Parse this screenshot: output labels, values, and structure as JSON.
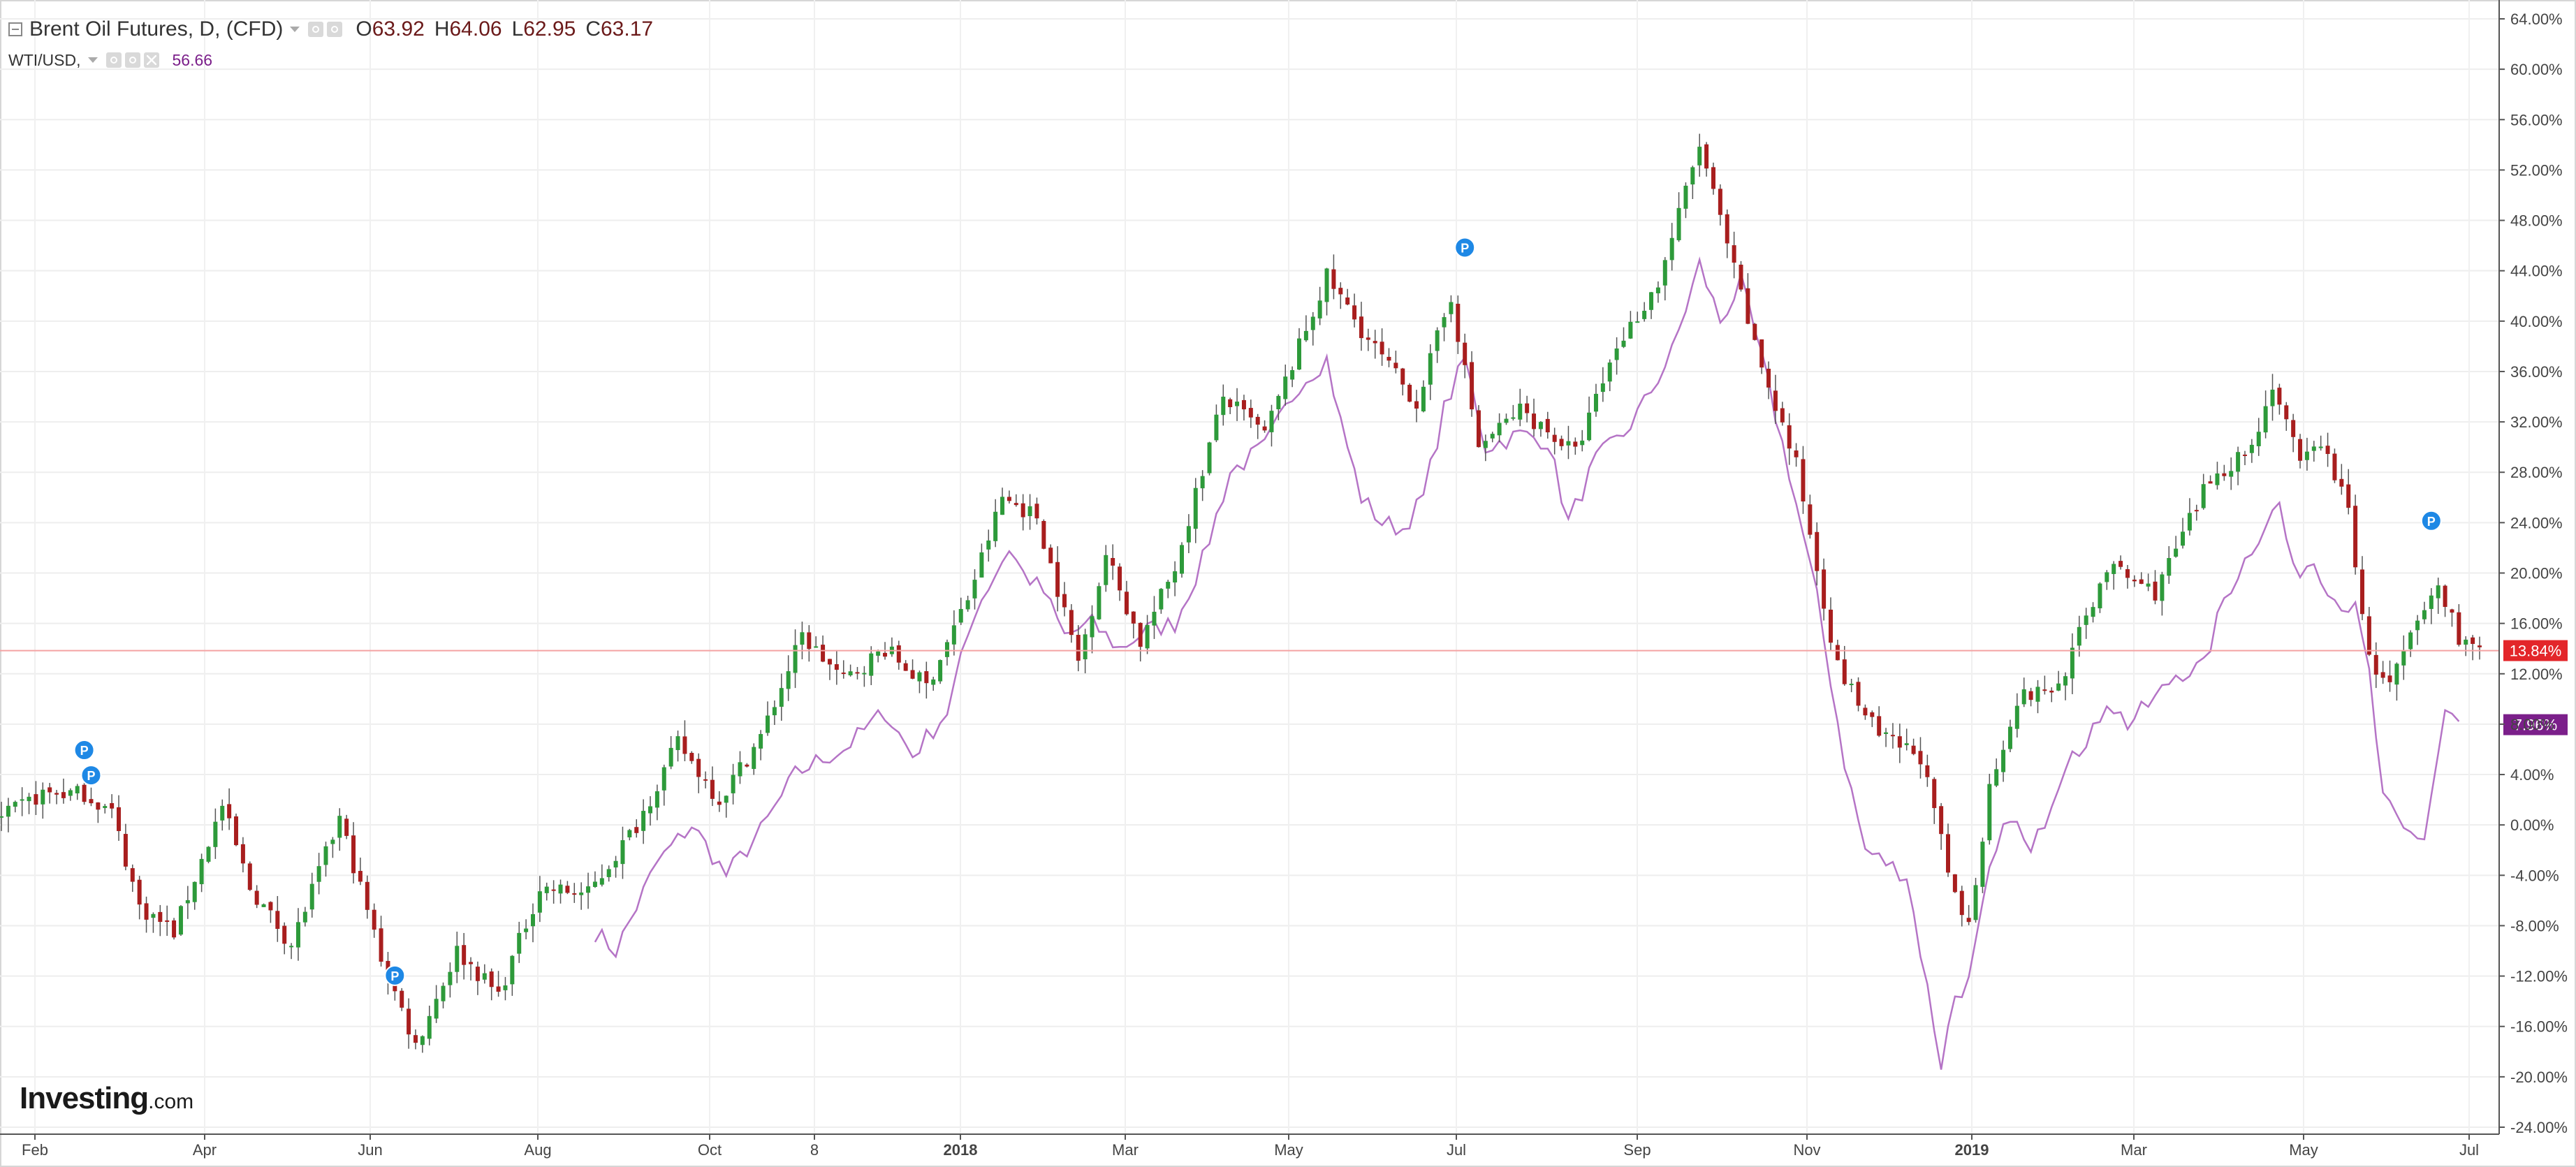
{
  "legend": {
    "symbol_title": "Brent Oil Futures, D, (CFD)",
    "ohlc": [
      {
        "key": "O",
        "value": "63.92"
      },
      {
        "key": "H",
        "value": "64.06"
      },
      {
        "key": "L",
        "value": "62.95"
      },
      {
        "key": "C",
        "value": "63.17"
      }
    ],
    "compare_symbol": "WTI/USD,",
    "compare_value": "56.66"
  },
  "watermark": {
    "brand": "Investing",
    "suffix": ".com"
  },
  "chart_data": {
    "type": "line",
    "chart_style": "candlestick with comparison line",
    "y_axis": {
      "position": "right",
      "scale": "percent",
      "range": [
        -24,
        64
      ],
      "ticks": [
        "64.00%",
        "60.00%",
        "56.00%",
        "52.00%",
        "48.00%",
        "44.00%",
        "40.00%",
        "36.00%",
        "32.00%",
        "28.00%",
        "24.00%",
        "20.00%",
        "16.00%",
        "12.00%",
        "8.00%",
        "4.00%",
        "0.00%",
        "-4.00%",
        "-8.00%",
        "-12.00%",
        "-16.00%",
        "-20.00%",
        "-24.00%"
      ]
    },
    "x_axis": {
      "ticks": [
        {
          "label": "Feb",
          "bold": false
        },
        {
          "label": "Apr",
          "bold": false
        },
        {
          "label": "Jun",
          "bold": false
        },
        {
          "label": "Aug",
          "bold": false
        },
        {
          "label": "Oct",
          "bold": false
        },
        {
          "label": "8",
          "bold": false
        },
        {
          "label": "2018",
          "bold": true
        },
        {
          "label": "Mar",
          "bold": false
        },
        {
          "label": "May",
          "bold": false
        },
        {
          "label": "Jul",
          "bold": false
        },
        {
          "label": "Sep",
          "bold": false
        },
        {
          "label": "Nov",
          "bold": false
        },
        {
          "label": "2019",
          "bold": true
        },
        {
          "label": "Mar",
          "bold": false
        },
        {
          "label": "May",
          "bold": false
        },
        {
          "label": "Jul",
          "bold": false
        }
      ]
    },
    "grid": true,
    "current_level_marker": {
      "label": "13.84%",
      "value": 13.84,
      "color": "#e3262a"
    },
    "compare_level_marker": {
      "label": "7.96%",
      "value": 7.96,
      "color": "#7b1f8a"
    },
    "colors": {
      "up": "#2d9a3a",
      "down": "#a81e1e",
      "wick": "#555555",
      "compare": "#b574c6",
      "marker_badge": "#1e88e5"
    },
    "markers": [
      {
        "label": "P",
        "x_index": 12,
        "y": 4.5
      },
      {
        "label": "P",
        "x_index": 13,
        "y": 2.5
      },
      {
        "label": "P",
        "x_index": 57,
        "y": -13.4
      },
      {
        "label": "P",
        "x_index": 212,
        "y": 44.4
      },
      {
        "label": "P",
        "x_index": 352,
        "y": 22.7
      }
    ],
    "series": [
      {
        "name": "Brent Oil Futures",
        "kind": "candlestick",
        "close_keypoints": [
          [
            0,
            0.5
          ],
          [
            6,
            2.5
          ],
          [
            12,
            2.5
          ],
          [
            16,
            1.0
          ],
          [
            20,
            -6.5
          ],
          [
            25,
            -8.5
          ],
          [
            32,
            1.5
          ],
          [
            36,
            -5.0
          ],
          [
            42,
            -9.5
          ],
          [
            49,
            0.5
          ],
          [
            55,
            -10.5
          ],
          [
            60,
            -17.5
          ],
          [
            66,
            -10.0
          ],
          [
            72,
            -13.5
          ],
          [
            78,
            -5.0
          ],
          [
            85,
            -5.5
          ],
          [
            92,
            0.0
          ],
          [
            98,
            6.5
          ],
          [
            104,
            2.0
          ],
          [
            110,
            7.0
          ],
          [
            116,
            15.0
          ],
          [
            122,
            11.5
          ],
          [
            128,
            14.0
          ],
          [
            134,
            11.0
          ],
          [
            140,
            18.0
          ],
          [
            145,
            26.0
          ],
          [
            150,
            24.5
          ],
          [
            156,
            13.0
          ],
          [
            160,
            21.5
          ],
          [
            165,
            14.5
          ],
          [
            170,
            20.5
          ],
          [
            177,
            34.0
          ],
          [
            183,
            31.0
          ],
          [
            192,
            43.5
          ],
          [
            198,
            38.5
          ],
          [
            205,
            33.5
          ],
          [
            210,
            42.0
          ],
          [
            214,
            30.0
          ],
          [
            220,
            33.0
          ],
          [
            228,
            29.5
          ],
          [
            234,
            38.0
          ],
          [
            240,
            43.0
          ],
          [
            246,
            54.0
          ],
          [
            250,
            46.0
          ],
          [
            254,
            38.0
          ],
          [
            260,
            28.5
          ],
          [
            266,
            12.5
          ],
          [
            272,
            7.0
          ],
          [
            278,
            5.5
          ],
          [
            283,
            -6.0
          ],
          [
            285,
            -8.0
          ],
          [
            288,
            3.0
          ],
          [
            292,
            10.0
          ],
          [
            298,
            11.0
          ],
          [
            305,
            20.5
          ],
          [
            312,
            18.5
          ],
          [
            320,
            27.5
          ],
          [
            326,
            30.0
          ],
          [
            329,
            35.0
          ],
          [
            333,
            28.5
          ],
          [
            336,
            30.5
          ],
          [
            340,
            25.0
          ],
          [
            343,
            13.0
          ],
          [
            346,
            11.0
          ],
          [
            350,
            16.0
          ],
          [
            353,
            19.0
          ],
          [
            356,
            15.0
          ],
          [
            359,
            13.8
          ]
        ]
      },
      {
        "name": "WTI/USD",
        "kind": "line",
        "keypoints": [
          [
            86,
            -8.5
          ],
          [
            89,
            -10.0
          ],
          [
            95,
            -3.0
          ],
          [
            100,
            0.0
          ],
          [
            105,
            -4.0
          ],
          [
            110,
            -0.5
          ],
          [
            115,
            4.0
          ],
          [
            118,
            5.0
          ],
          [
            122,
            6.0
          ],
          [
            128,
            9.0
          ],
          [
            132,
            5.5
          ],
          [
            137,
            9.0
          ],
          [
            141,
            17.0
          ],
          [
            146,
            22.0
          ],
          [
            148,
            20.0
          ],
          [
            151,
            18.5
          ],
          [
            154,
            15.0
          ],
          [
            158,
            16.0
          ],
          [
            162,
            14.0
          ],
          [
            166,
            15.5
          ],
          [
            170,
            16.0
          ],
          [
            174,
            21.0
          ],
          [
            178,
            28.0
          ],
          [
            183,
            30.0
          ],
          [
            188,
            35.0
          ],
          [
            192,
            37.0
          ],
          [
            194,
            32.0
          ],
          [
            197,
            26.0
          ],
          [
            200,
            24.0
          ],
          [
            203,
            23.5
          ],
          [
            206,
            26.0
          ],
          [
            209,
            33.0
          ],
          [
            212,
            37.0
          ],
          [
            215,
            30.0
          ],
          [
            220,
            31.0
          ],
          [
            224,
            30.5
          ],
          [
            227,
            24.0
          ],
          [
            231,
            29.0
          ],
          [
            235,
            31.0
          ],
          [
            238,
            33.5
          ],
          [
            242,
            37.5
          ],
          [
            246,
            44.5
          ],
          [
            249,
            40.0
          ],
          [
            252,
            43.0
          ],
          [
            255,
            37.0
          ],
          [
            259,
            28.0
          ],
          [
            263,
            18.0
          ],
          [
            267,
            5.0
          ],
          [
            270,
            -2.0
          ],
          [
            273,
            -3.0
          ],
          [
            276,
            -4.0
          ],
          [
            279,
            -13.0
          ],
          [
            281,
            -19.0
          ],
          [
            283,
            -13.5
          ],
          [
            285,
            -12.5
          ],
          [
            288,
            -4.0
          ],
          [
            291,
            1.0
          ],
          [
            294,
            -2.5
          ],
          [
            297,
            2.0
          ],
          [
            300,
            6.5
          ],
          [
            302,
            6.0
          ],
          [
            305,
            10.0
          ],
          [
            308,
            8.0
          ],
          [
            312,
            10.0
          ],
          [
            315,
            12.0
          ],
          [
            319,
            12.5
          ],
          [
            322,
            18.0
          ],
          [
            325,
            21.0
          ],
          [
            328,
            24.0
          ],
          [
            330,
            25.5
          ],
          [
            332,
            20.0
          ],
          [
            335,
            21.0
          ],
          [
            338,
            18.0
          ],
          [
            341,
            17.0
          ],
          [
            343,
            12.0
          ],
          [
            345,
            2.0
          ],
          [
            348,
            -0.5
          ],
          [
            351,
            -1.0
          ],
          [
            354,
            9.0
          ],
          [
            356,
            7.96
          ]
        ]
      }
    ]
  }
}
